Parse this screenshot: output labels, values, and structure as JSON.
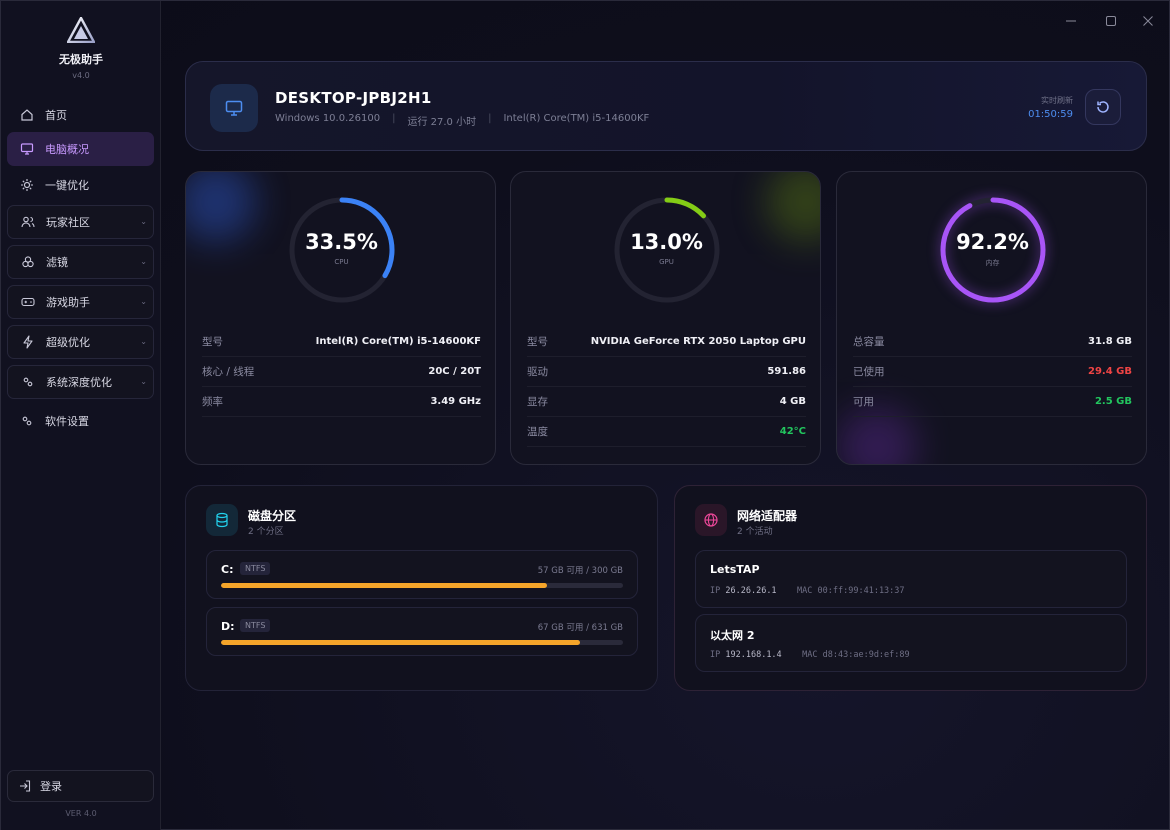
{
  "app": {
    "name": "无极助手",
    "version": "v4.0",
    "footer_version": "VER 4.0"
  },
  "sidebar": {
    "items": [
      {
        "label": "首页",
        "icon": "home-icon"
      },
      {
        "label": "电脑概况",
        "icon": "monitor-icon",
        "active": true
      },
      {
        "label": "一键优化",
        "icon": "sun-icon"
      },
      {
        "label": "玩家社区",
        "icon": "users-icon",
        "expandable": true
      },
      {
        "label": "滤镜",
        "icon": "filter-icon",
        "expandable": true
      },
      {
        "label": "游戏助手",
        "icon": "gamepad-icon",
        "expandable": true
      },
      {
        "label": "超级优化",
        "icon": "bolt-icon",
        "expandable": true
      },
      {
        "label": "系统深度优化",
        "icon": "nodes-icon",
        "expandable": true
      },
      {
        "label": "软件设置",
        "icon": "nodes-icon"
      }
    ],
    "login_label": "登录"
  },
  "header": {
    "hostname": "DESKTOP-JPBJ2H1",
    "os": "Windows 10.0.26100",
    "uptime": "运行 27.0 小时",
    "cpu": "Intel(R) Core(TM) i5-14600KF",
    "realtime_label": "实时刷新",
    "time": "01:50:59"
  },
  "cards": {
    "cpu": {
      "percent_text": "33.5%",
      "percent": 33.5,
      "label": "CPU",
      "color": "#3b82f6",
      "rows": [
        {
          "k": "型号",
          "v": "Intel(R) Core(TM) i5-14600KF"
        },
        {
          "k": "核心 / 线程",
          "v": "20C / 20T"
        },
        {
          "k": "频率",
          "v": "3.49 GHz"
        }
      ]
    },
    "gpu": {
      "percent_text": "13.0%",
      "percent": 13.0,
      "label": "GPU",
      "color": "#84cc16",
      "rows": [
        {
          "k": "型号",
          "v": "NVIDIA GeForce RTX 2050 Laptop GPU"
        },
        {
          "k": "驱动",
          "v": "591.86"
        },
        {
          "k": "显存",
          "v": "4 GB"
        },
        {
          "k": "温度",
          "v": "42°C"
        }
      ]
    },
    "mem": {
      "percent_text": "92.2%",
      "percent": 92.2,
      "label": "内存",
      "color": "#a855f7",
      "rows": [
        {
          "k": "总容量",
          "v": "31.8 GB"
        },
        {
          "k": "已使用",
          "v": "29.4 GB"
        },
        {
          "k": "可用",
          "v": "2.5 GB"
        }
      ]
    }
  },
  "disks": {
    "title": "磁盘分区",
    "subtitle": "2 个分区",
    "items": [
      {
        "letter": "C:",
        "fs": "NTFS",
        "capacity": "57 GB 可用 / 300 GB",
        "used_fraction": 0.81
      },
      {
        "letter": "D:",
        "fs": "NTFS",
        "capacity": "67 GB 可用 / 631 GB",
        "used_fraction": 0.894
      }
    ]
  },
  "network": {
    "title": "网络适配器",
    "subtitle": "2 个活动",
    "items": [
      {
        "name": "LetsTAP",
        "ip_label": "IP",
        "ip": "26.26.26.1",
        "mac_label": "MAC",
        "mac": "00:ff:99:41:13:37"
      },
      {
        "name": "以太网 2",
        "ip_label": "IP",
        "ip": "192.168.1.4",
        "mac_label": "MAC",
        "mac": "d8:43:ae:9d:ef:89"
      }
    ]
  }
}
